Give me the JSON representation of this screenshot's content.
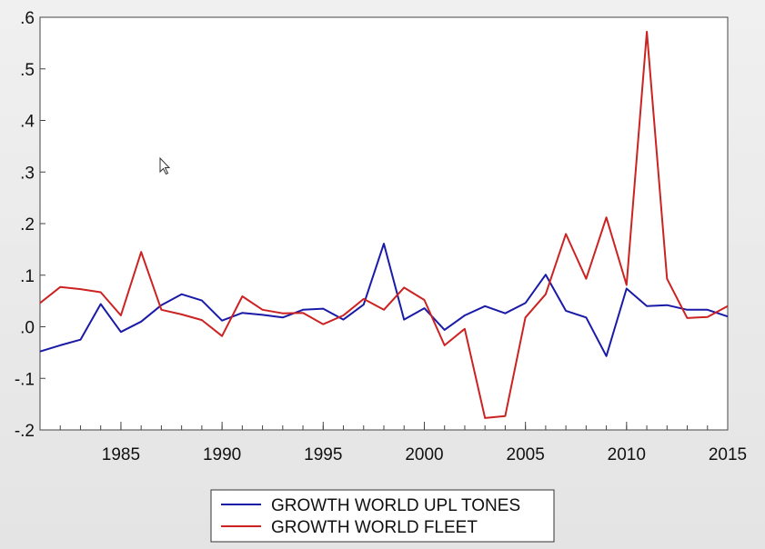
{
  "chart_data": {
    "type": "line",
    "title": "",
    "xlabel": "",
    "ylabel": "",
    "xlim": [
      1981,
      2015
    ],
    "ylim": [
      -0.2,
      0.6
    ],
    "y_ticks": [
      -0.2,
      -0.1,
      0.0,
      0.1,
      0.2,
      0.3,
      0.4,
      0.5,
      0.6
    ],
    "y_tick_labels": [
      "-.2",
      "-.1",
      ".0",
      ".1",
      ".2",
      ".3",
      ".4",
      ".5",
      ".6"
    ],
    "x_ticks": [
      1985,
      1990,
      1995,
      2000,
      2005,
      2010,
      2015
    ],
    "x_tick_labels": [
      "1985",
      "1990",
      "1995",
      "2000",
      "2005",
      "2010",
      "2015"
    ],
    "grid": false,
    "legend_position": "bottom-center",
    "x": [
      1981,
      1982,
      1983,
      1984,
      1985,
      1986,
      1987,
      1988,
      1989,
      1990,
      1991,
      1992,
      1993,
      1994,
      1995,
      1996,
      1997,
      1998,
      1999,
      2000,
      2001,
      2002,
      2003,
      2004,
      2005,
      2006,
      2007,
      2008,
      2009,
      2010,
      2011,
      2012,
      2013,
      2014,
      2015
    ],
    "series": [
      {
        "name": "GROWTH WORLD UPL TONES",
        "color": "#1a1aa8",
        "values": [
          -0.048,
          -0.036,
          -0.025,
          0.044,
          -0.01,
          0.01,
          0.042,
          0.063,
          0.051,
          0.012,
          0.027,
          0.023,
          0.018,
          0.033,
          0.035,
          0.014,
          0.043,
          0.161,
          0.014,
          0.036,
          -0.006,
          0.022,
          0.04,
          0.026,
          0.046,
          0.101,
          0.031,
          0.018,
          -0.057,
          0.074,
          0.04,
          0.042,
          0.033,
          0.033,
          0.02
        ]
      },
      {
        "name": "GROWTH WORLD FLEET",
        "color": "#cc2222",
        "values": [
          0.046,
          0.077,
          0.073,
          0.067,
          0.022,
          0.145,
          0.033,
          0.024,
          0.013,
          -0.018,
          0.059,
          0.033,
          0.026,
          0.027,
          0.005,
          0.022,
          0.054,
          0.033,
          0.076,
          0.052,
          -0.036,
          -0.004,
          -0.177,
          -0.173,
          0.018,
          0.063,
          0.18,
          0.093,
          0.212,
          0.081,
          0.572,
          0.093,
          0.017,
          0.019,
          0.04
        ]
      }
    ]
  }
}
